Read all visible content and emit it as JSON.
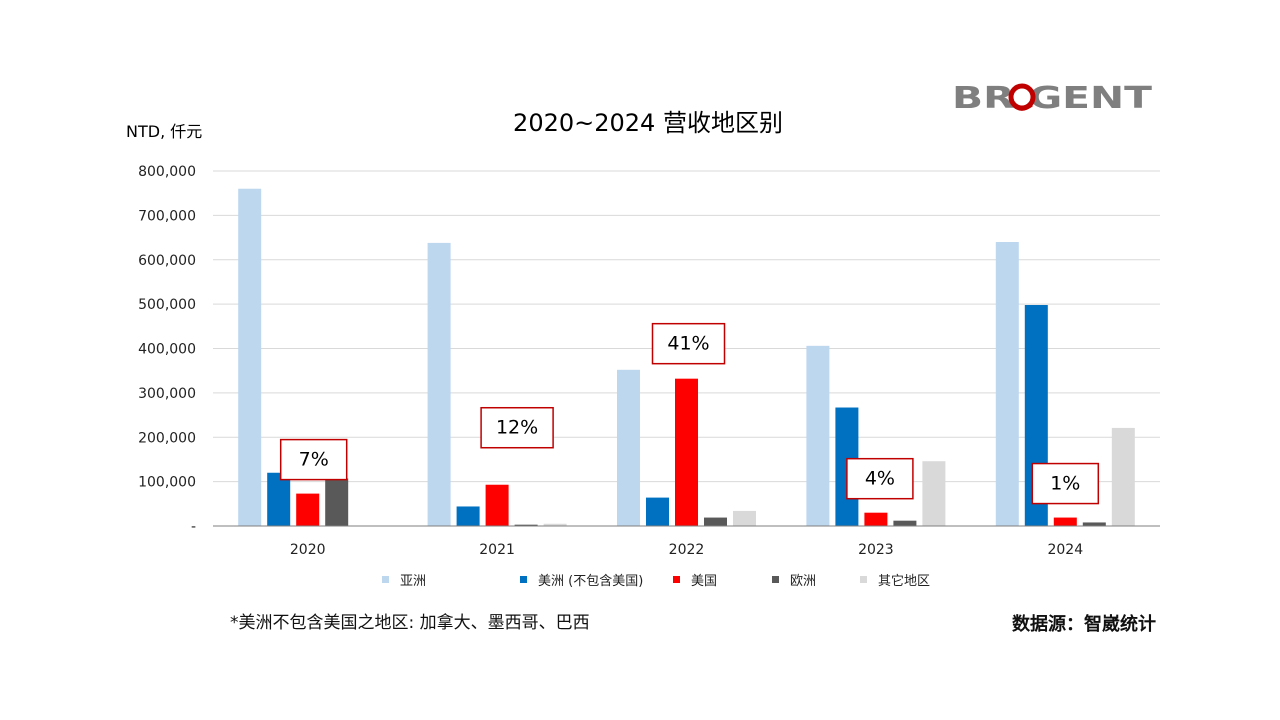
{
  "logo_text": "BROGENT",
  "footnote": "*美洲不包含美国之地区: 加拿大、墨西哥、巴西",
  "source": "数据源：智崴统计",
  "chart_data": {
    "type": "bar",
    "title": "2020~2024 营收地区别",
    "ylabel": "NTD, 仟元",
    "xlabel": "",
    "ylim": [
      0,
      800000
    ],
    "yticks": [
      0,
      100000,
      200000,
      300000,
      400000,
      500000,
      600000,
      700000,
      800000
    ],
    "ytick_labels": [
      "-",
      "100,000",
      "200,000",
      "300,000",
      "400,000",
      "500,000",
      "600,000",
      "700,000",
      "800,000"
    ],
    "grid": true,
    "legend_position": "bottom",
    "categories": [
      "2020",
      "2021",
      "2022",
      "2023",
      "2024"
    ],
    "series": [
      {
        "name": "亚洲",
        "color": "#BDD7EE",
        "values": [
          760000,
          638000,
          352000,
          406000,
          640000
        ]
      },
      {
        "name": "美洲 (不包含美国)",
        "color": "#0070C0",
        "values": [
          120000,
          44000,
          64000,
          267000,
          498000
        ]
      },
      {
        "name": "美国",
        "color": "#FF0000",
        "values": [
          73000,
          93000,
          332000,
          30000,
          19000
        ]
      },
      {
        "name": "欧洲",
        "color": "#595959",
        "values": [
          107000,
          3000,
          19000,
          12000,
          8000
        ]
      },
      {
        "name": "其它地区",
        "color": "#D9D9D9",
        "values": [
          0,
          5000,
          34000,
          146000,
          221000
        ]
      }
    ],
    "annotations": [
      {
        "category": "2020",
        "text": "7%"
      },
      {
        "category": "2021",
        "text": "12%"
      },
      {
        "category": "2022",
        "text": "41%"
      },
      {
        "category": "2023",
        "text": "4%"
      },
      {
        "category": "2024",
        "text": "1%"
      }
    ]
  }
}
